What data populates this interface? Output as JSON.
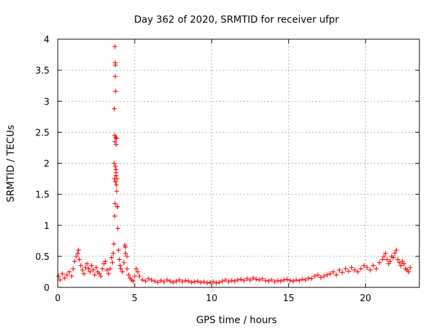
{
  "chart_data": {
    "type": "scatter",
    "title": "Day 362 of 2020, SRMTID for receiver ufpr",
    "xlabel": "GPS time / hours",
    "ylabel": "SRMTID / TECUs",
    "xlim": [
      0,
      23.5
    ],
    "ylim": [
      0,
      4
    ],
    "xticks": [
      0,
      5,
      10,
      15,
      20
    ],
    "xtick_labels": [
      "0",
      "5",
      "10",
      "15",
      "20"
    ],
    "yticks": [
      0,
      0.5,
      1,
      1.5,
      2,
      2.5,
      3,
      3.5,
      4
    ],
    "ytick_labels": [
      "0",
      "0.5",
      "1",
      "1.5",
      "2",
      "2.5",
      "3",
      "3.5",
      "4"
    ],
    "grid": true,
    "marker": "+",
    "color": "#ff0000",
    "series": [
      {
        "name": "SRMTID",
        "x": [
          0.05,
          0.15,
          0.3,
          0.45,
          0.6,
          0.75,
          0.9,
          1.0,
          1.1,
          1.2,
          1.3,
          1.35,
          1.4,
          1.5,
          1.6,
          1.7,
          1.8,
          1.9,
          2.0,
          2.1,
          2.2,
          2.3,
          2.4,
          2.5,
          2.6,
          2.7,
          2.8,
          2.9,
          3.0,
          3.1,
          3.2,
          3.3,
          3.4,
          3.5,
          3.55,
          3.6,
          3.65,
          3.7,
          3.72,
          3.75,
          3.78,
          3.8,
          3.82,
          3.85,
          3.88,
          3.9,
          3.95,
          4.0,
          4.05,
          4.1,
          4.2,
          4.3,
          4.4,
          4.5,
          4.6,
          4.7,
          4.8,
          4.9,
          5.0,
          5.1,
          5.2,
          5.3,
          5.5,
          5.7,
          5.9,
          6.1,
          6.3,
          6.5,
          6.7,
          6.9,
          7.1,
          7.3,
          7.5,
          7.7,
          7.9,
          8.1,
          8.3,
          8.5,
          8.7,
          8.9,
          9.1,
          9.3,
          9.5,
          9.7,
          9.9,
          10.1,
          10.3,
          10.5,
          10.7,
          10.9,
          11.1,
          11.3,
          11.5,
          11.7,
          11.9,
          12.1,
          12.3,
          12.5,
          12.7,
          12.9,
          13.1,
          13.3,
          13.5,
          13.7,
          13.9,
          14.1,
          14.3,
          14.5,
          14.7,
          14.9,
          15.1,
          15.3,
          15.5,
          15.7,
          15.9,
          16.1,
          16.3,
          16.5,
          16.7,
          16.9,
          17.1,
          17.3,
          17.5,
          17.7,
          17.9,
          18.1,
          18.3,
          18.5,
          18.7,
          18.9,
          19.1,
          19.3,
          19.5,
          19.7,
          19.9,
          20.1,
          20.3,
          20.5,
          20.7,
          20.9,
          21.1,
          21.2,
          21.3,
          21.4,
          21.5,
          21.6,
          21.7,
          21.8,
          21.9,
          22.0,
          22.1,
          22.2,
          22.3,
          22.4,
          22.5,
          22.6,
          22.7,
          22.8,
          22.9,
          3.72,
          3.73,
          3.74,
          3.76,
          3.68,
          3.7,
          3.71,
          3.66,
          3.79,
          3.81,
          3.75,
          3.77,
          3.74,
          3.83,
          3.86,
          3.69,
          3.78,
          4.4,
          4.5,
          4.35
        ],
        "y": [
          0.18,
          0.12,
          0.22,
          0.15,
          0.2,
          0.25,
          0.18,
          0.3,
          0.42,
          0.5,
          0.55,
          0.6,
          0.45,
          0.35,
          0.28,
          0.22,
          0.32,
          0.38,
          0.3,
          0.25,
          0.35,
          0.28,
          0.2,
          0.32,
          0.25,
          0.22,
          0.18,
          0.3,
          0.38,
          0.42,
          0.28,
          0.22,
          0.3,
          0.48,
          0.4,
          0.55,
          0.7,
          1.15,
          1.35,
          1.7,
          1.9,
          2.3,
          2.4,
          1.75,
          1.3,
          0.95,
          0.6,
          0.45,
          0.35,
          0.3,
          0.25,
          0.4,
          0.55,
          0.3,
          0.2,
          0.15,
          0.12,
          0.1,
          0.18,
          0.3,
          0.25,
          0.18,
          0.12,
          0.1,
          0.14,
          0.12,
          0.1,
          0.08,
          0.11,
          0.09,
          0.12,
          0.1,
          0.08,
          0.1,
          0.12,
          0.09,
          0.11,
          0.1,
          0.08,
          0.09,
          0.1,
          0.08,
          0.09,
          0.07,
          0.08,
          0.09,
          0.07,
          0.08,
          0.1,
          0.12,
          0.09,
          0.11,
          0.1,
          0.12,
          0.13,
          0.11,
          0.14,
          0.12,
          0.15,
          0.13,
          0.12,
          0.14,
          0.11,
          0.1,
          0.12,
          0.09,
          0.11,
          0.1,
          0.12,
          0.13,
          0.11,
          0.1,
          0.12,
          0.11,
          0.13,
          0.12,
          0.15,
          0.14,
          0.18,
          0.2,
          0.16,
          0.18,
          0.2,
          0.22,
          0.25,
          0.2,
          0.28,
          0.24,
          0.3,
          0.26,
          0.32,
          0.28,
          0.25,
          0.3,
          0.35,
          0.32,
          0.28,
          0.35,
          0.3,
          0.4,
          0.45,
          0.5,
          0.55,
          0.45,
          0.38,
          0.42,
          0.5,
          0.48,
          0.55,
          0.6,
          0.45,
          0.4,
          0.35,
          0.42,
          0.38,
          0.3,
          0.28,
          0.25,
          0.32,
          3.88,
          3.62,
          3.4,
          3.16,
          2.88,
          2.45,
          2.35,
          2.0,
          1.85,
          1.65,
          3.58,
          2.42,
          1.95,
          1.55,
          1.3,
          1.75,
          1.8,
          0.65,
          0.5,
          0.68
        ]
      }
    ]
  }
}
